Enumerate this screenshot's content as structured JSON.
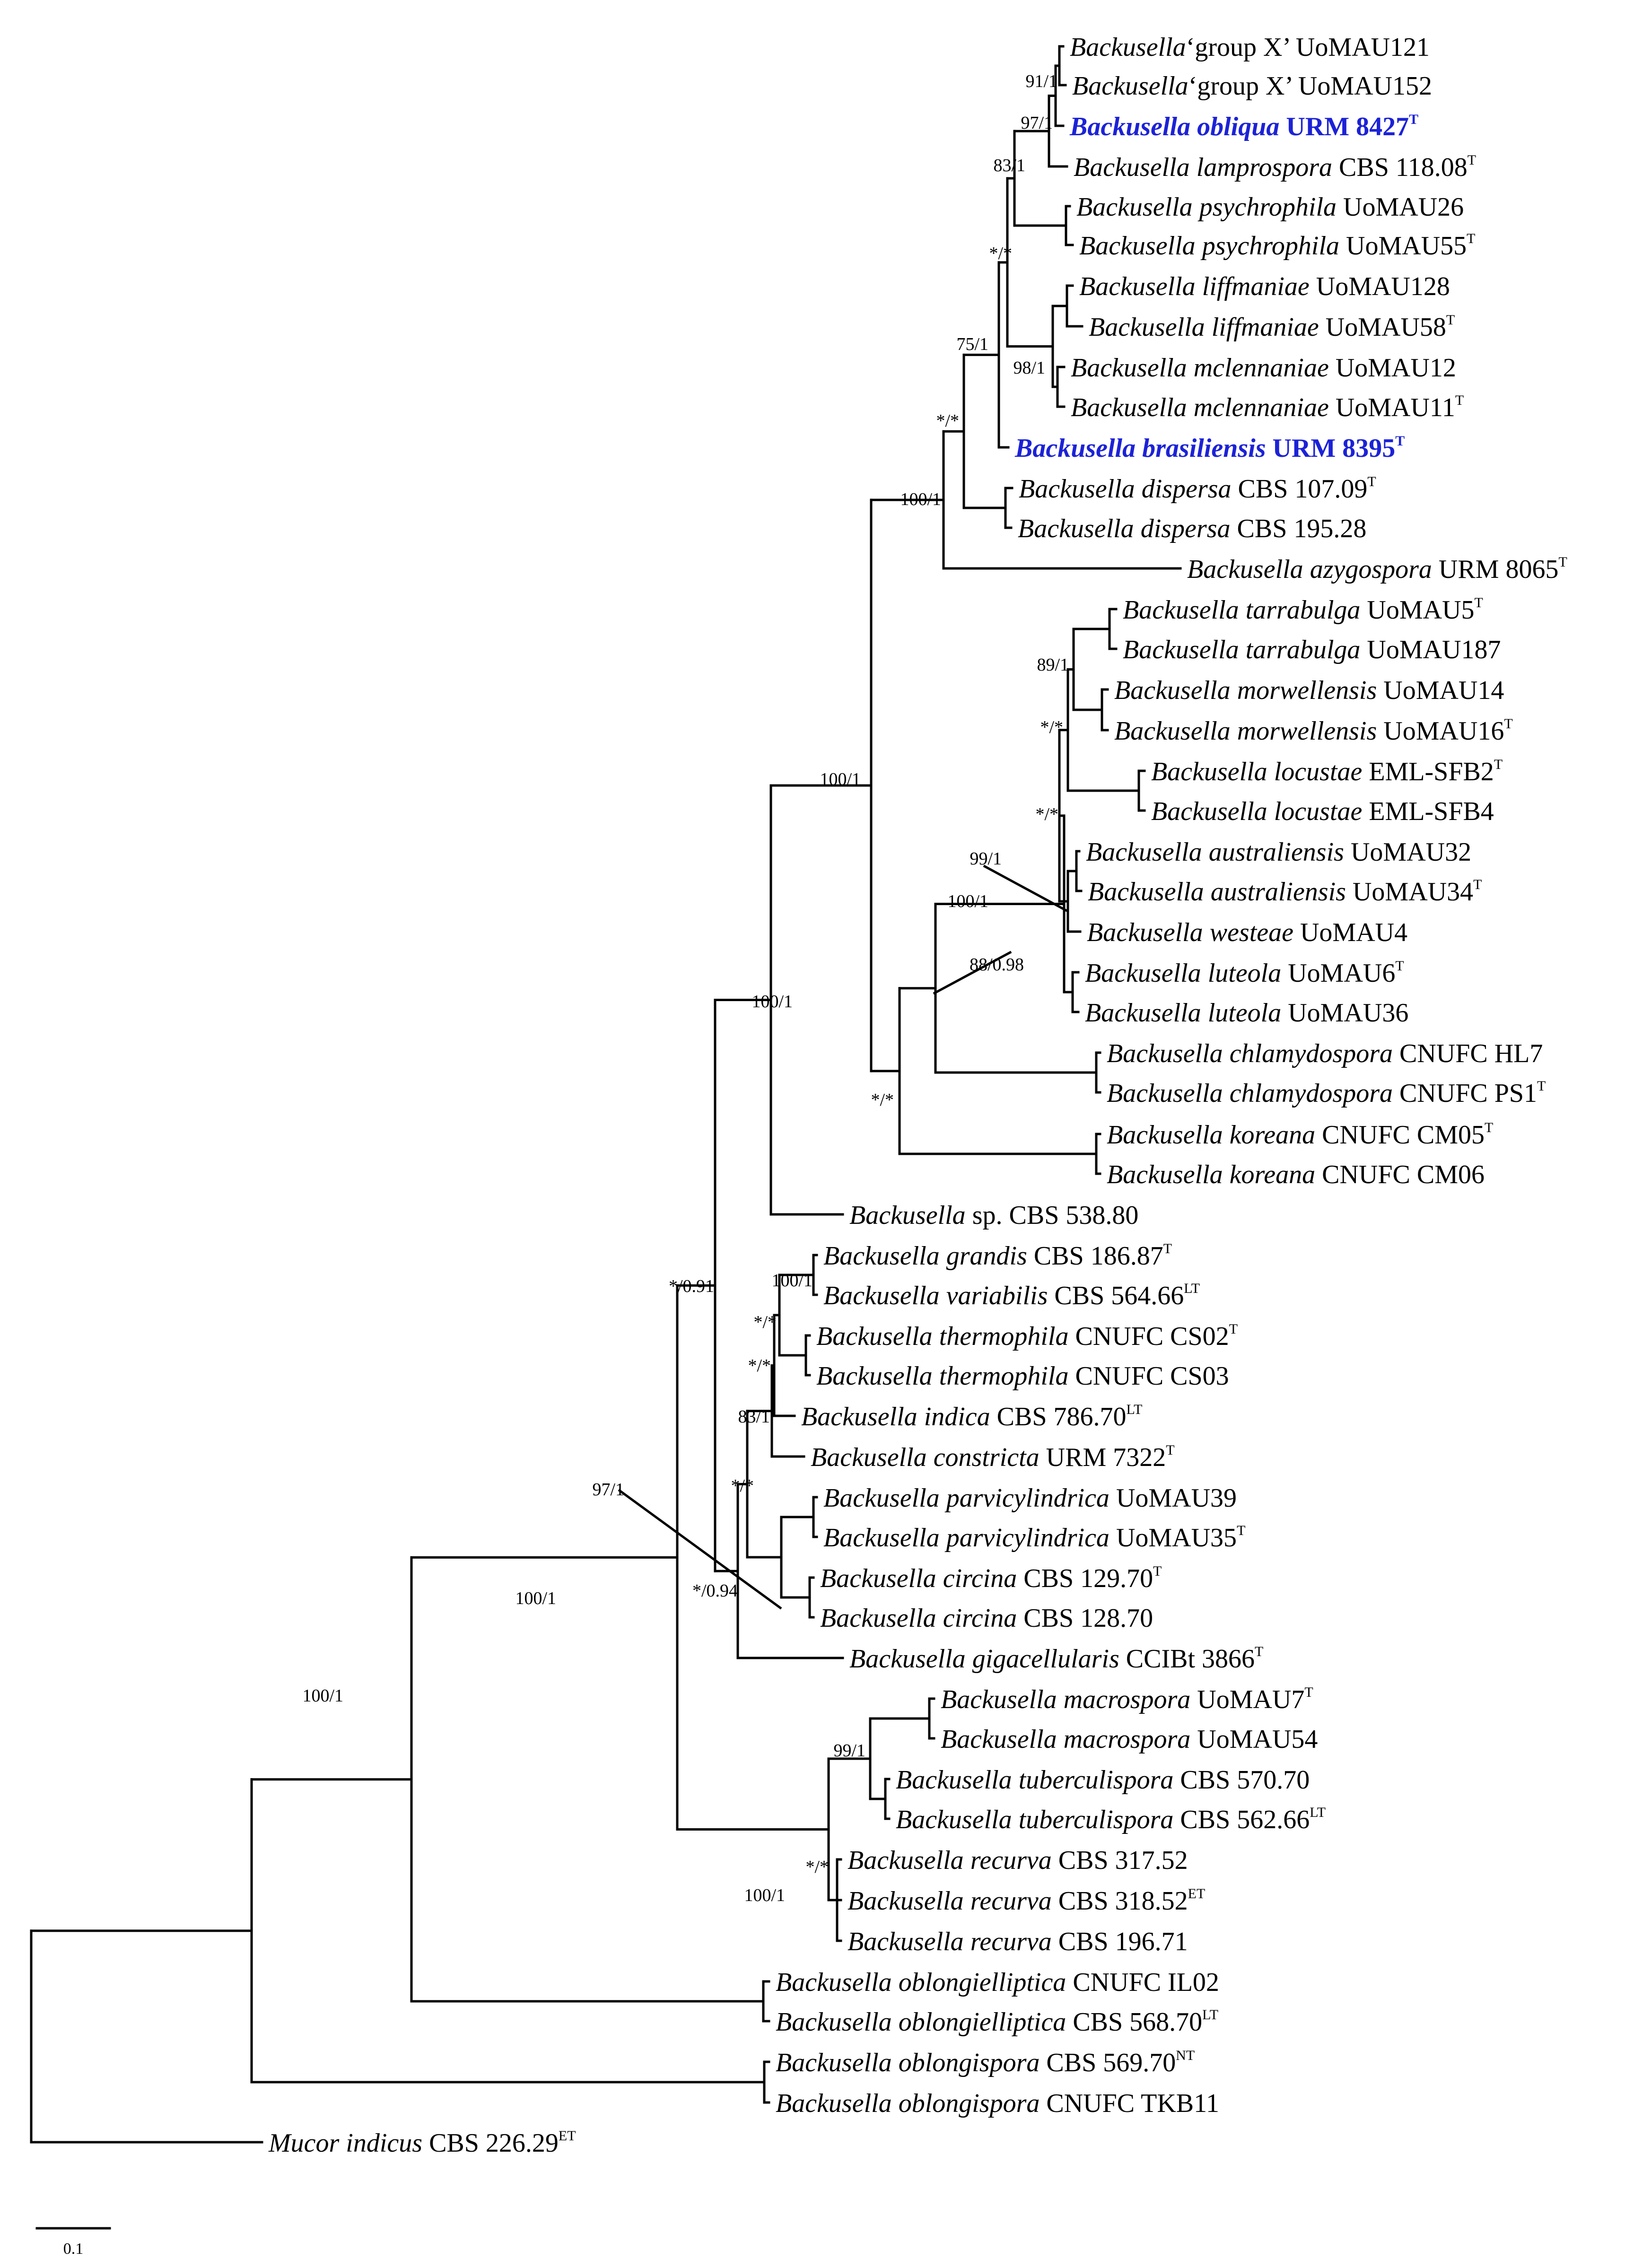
{
  "taxa": [
    {
      "id": "t1",
      "genus": "Backusella",
      "epithet": "",
      "qual": "‘group X’ ",
      "strain": "UoMAU121",
      "sup": ""
    },
    {
      "id": "t2",
      "genus": "Backusella",
      "epithet": "",
      "qual": "‘group X’ ",
      "strain": "UoMAU152",
      "sup": ""
    },
    {
      "id": "t3",
      "genus": "Backusella",
      "epithet": "obliqua",
      "strain": "URM 8427",
      "sup": "T",
      "highlight": true
    },
    {
      "id": "t4",
      "genus": "Backusella",
      "epithet": "lamprospora",
      "strain": "CBS 118.08",
      "sup": "T"
    },
    {
      "id": "t5",
      "genus": "Backusella",
      "epithet": "psychrophila",
      "strain": "UoMAU26",
      "sup": ""
    },
    {
      "id": "t6",
      "genus": "Backusella",
      "epithet": "psychrophila",
      "strain": "UoMAU55",
      "sup": "T"
    },
    {
      "id": "t7",
      "genus": "Backusella",
      "epithet": "liffmaniae",
      "strain": "UoMAU128",
      "sup": ""
    },
    {
      "id": "t8",
      "genus": "Backusella",
      "epithet": "liffmaniae",
      "strain": "UoMAU58",
      "sup": "T"
    },
    {
      "id": "t9",
      "genus": "Backusella",
      "epithet": "mclennaniae",
      "strain": "UoMAU12",
      "sup": ""
    },
    {
      "id": "t10",
      "genus": "Backusella",
      "epithet": "mclennaniae",
      "strain": "UoMAU11",
      "sup": "T"
    },
    {
      "id": "t11",
      "genus": "Backusella",
      "epithet": "brasiliensis",
      "strain": "URM 8395",
      "sup": "T",
      "highlight": true
    },
    {
      "id": "t12",
      "genus": "Backusella",
      "epithet": "dispersa",
      "strain": "CBS 107.09",
      "sup": "T"
    },
    {
      "id": "t13",
      "genus": "Backusella",
      "epithet": "dispersa",
      "strain": "CBS 195.28",
      "sup": ""
    },
    {
      "id": "t14",
      "genus": "Backusella",
      "epithet": "azygospora",
      "strain": "URM 8065",
      "sup": "T"
    },
    {
      "id": "t15",
      "genus": "Backusella",
      "epithet": "tarrabulga",
      "strain": "UoMAU5",
      "sup": "T"
    },
    {
      "id": "t16",
      "genus": "Backusella",
      "epithet": "tarrabulga",
      "strain": "UoMAU187",
      "sup": ""
    },
    {
      "id": "t17",
      "genus": "Backusella",
      "epithet": "morwellensis",
      "strain": "UoMAU14",
      "sup": ""
    },
    {
      "id": "t18",
      "genus": "Backusella",
      "epithet": "morwellensis",
      "strain": "UoMAU16",
      "sup": "T"
    },
    {
      "id": "t19",
      "genus": "Backusella",
      "epithet": "locustae",
      "strain": "EML-SFB2",
      "sup": "T"
    },
    {
      "id": "t20",
      "genus": "Backusella",
      "epithet": "locustae",
      "strain": "EML-SFB4",
      "sup": ""
    },
    {
      "id": "t21",
      "genus": "Backusella",
      "epithet": "australiensis",
      "strain": "UoMAU32",
      "sup": ""
    },
    {
      "id": "t22",
      "genus": "Backusella",
      "epithet": "australiensis",
      "strain": "UoMAU34",
      "sup": "T"
    },
    {
      "id": "t23",
      "genus": "Backusella",
      "epithet": "westeae",
      "strain": "UoMAU4",
      "sup": ""
    },
    {
      "id": "t24",
      "genus": "Backusella",
      "epithet": "luteola",
      "strain": "UoMAU6",
      "sup": "T"
    },
    {
      "id": "t25",
      "genus": "Backusella",
      "epithet": "luteola",
      "strain": "UoMAU36",
      "sup": ""
    },
    {
      "id": "t26",
      "genus": "Backusella",
      "epithet": "chlamydospora",
      "strain": "CNUFC HL7",
      "sup": ""
    },
    {
      "id": "t27",
      "genus": "Backusella",
      "epithet": "chlamydospora",
      "strain": "CNUFC PS1",
      "sup": "T"
    },
    {
      "id": "t28",
      "genus": "Backusella",
      "epithet": "koreana",
      "strain": "CNUFC CM05",
      "sup": "T"
    },
    {
      "id": "t29",
      "genus": "Backusella",
      "epithet": "koreana",
      "strain": "CNUFC CM06",
      "sup": ""
    },
    {
      "id": "t30",
      "genus": "Backusella",
      "epithet": "",
      "qual": " sp. ",
      "strain": "CBS 538.80",
      "sup": ""
    },
    {
      "id": "t31",
      "genus": "Backusella",
      "epithet": "grandis",
      "strain": "CBS 186.87",
      "sup": "T"
    },
    {
      "id": "t32",
      "genus": "Backusella",
      "epithet": "variabilis",
      "strain": "CBS 564.66",
      "sup": "LT"
    },
    {
      "id": "t33",
      "genus": "Backusella",
      "epithet": "thermophila",
      "strain": "CNUFC CS02",
      "sup": "T"
    },
    {
      "id": "t34",
      "genus": "Backusella",
      "epithet": "thermophila",
      "strain": "CNUFC CS03",
      "sup": ""
    },
    {
      "id": "t35",
      "genus": "Backusella",
      "epithet": "indica",
      "strain": "CBS 786.70",
      "sup": "LT"
    },
    {
      "id": "t36",
      "genus": "Backusella",
      "epithet": "constricta",
      "strain": "URM 7322",
      "sup": "T"
    },
    {
      "id": "t37",
      "genus": "Backusella",
      "epithet": "parvicylindrica",
      "strain": "UoMAU39",
      "sup": ""
    },
    {
      "id": "t38",
      "genus": "Backusella",
      "epithet": "parvicylindrica",
      "strain": "UoMAU35",
      "sup": "T"
    },
    {
      "id": "t39",
      "genus": "Backusella",
      "epithet": "circina",
      "strain": "CBS 129.70",
      "sup": "T"
    },
    {
      "id": "t40",
      "genus": "Backusella",
      "epithet": "circina",
      "strain": "CBS 128.70",
      "sup": ""
    },
    {
      "id": "t41",
      "genus": "Backusella",
      "epithet": "gigacellularis",
      "strain": "CCIBt 3866",
      "sup": "T"
    },
    {
      "id": "t42",
      "genus": "Backusella",
      "epithet": "macrospora",
      "strain": "UoMAU7",
      "sup": "T"
    },
    {
      "id": "t43",
      "genus": "Backusella",
      "epithet": "macrospora",
      "strain": "UoMAU54",
      "sup": ""
    },
    {
      "id": "t44",
      "genus": "Backusella",
      "epithet": "tuberculispora",
      "strain": "CBS 570.70",
      "sup": ""
    },
    {
      "id": "t45",
      "genus": "Backusella",
      "epithet": "tuberculispora",
      "strain": "CBS 562.66",
      "sup": "LT"
    },
    {
      "id": "t46",
      "genus": "Backusella",
      "epithet": "recurva",
      "strain": "CBS 317.52",
      "sup": ""
    },
    {
      "id": "t47",
      "genus": "Backusella",
      "epithet": "recurva",
      "strain": "CBS 318.52",
      "sup": "ET"
    },
    {
      "id": "t48",
      "genus": "Backusella",
      "epithet": "recurva",
      "strain": "CBS 196.71",
      "sup": ""
    },
    {
      "id": "t49",
      "genus": "Backusella",
      "epithet": "oblongielliptica",
      "strain": "CNUFC IL02",
      "sup": ""
    },
    {
      "id": "t50",
      "genus": "Backusella",
      "epithet": "oblongielliptica",
      "strain": "CBS 568.70",
      "sup": "LT"
    },
    {
      "id": "t51",
      "genus": "Backusella",
      "epithet": "oblongispora",
      "strain": "CBS 569.70",
      "sup": "NT"
    },
    {
      "id": "t52",
      "genus": "Backusella",
      "epithet": "oblongispora",
      "strain": "CNUFC TKB11",
      "sup": ""
    },
    {
      "id": "t53",
      "genus": "Mucor",
      "epithet": "indicus",
      "strain": "CBS 226.29",
      "sup": "ET"
    }
  ],
  "support_values": [
    {
      "id": "s1",
      "text": "91/1"
    },
    {
      "id": "s2",
      "text": "97/1"
    },
    {
      "id": "s3",
      "text": "83/1"
    },
    {
      "id": "s4",
      "text": "*/*"
    },
    {
      "id": "s5",
      "text": "98/1"
    },
    {
      "id": "s6",
      "text": "75/1"
    },
    {
      "id": "s7",
      "text": "*/*"
    },
    {
      "id": "s8",
      "text": "100/1"
    },
    {
      "id": "s9",
      "text": "89/1"
    },
    {
      "id": "s10",
      "text": "*/*"
    },
    {
      "id": "s11",
      "text": "*/*"
    },
    {
      "id": "s12",
      "text": "99/1"
    },
    {
      "id": "s13",
      "text": "100/1"
    },
    {
      "id": "s14",
      "text": "88/0.98"
    },
    {
      "id": "s15",
      "text": "100/1"
    },
    {
      "id": "s16",
      "text": "*/*"
    },
    {
      "id": "s17",
      "text": "100/1"
    },
    {
      "id": "s18",
      "text": "*/0.91"
    },
    {
      "id": "s19",
      "text": "100/1"
    },
    {
      "id": "s20",
      "text": "*/*"
    },
    {
      "id": "s21",
      "text": "*/*"
    },
    {
      "id": "s22",
      "text": "83/1"
    },
    {
      "id": "s23",
      "text": "*/*"
    },
    {
      "id": "s24",
      "text": "97/1"
    },
    {
      "id": "s25",
      "text": "*/0.94"
    },
    {
      "id": "s26",
      "text": "100/1"
    },
    {
      "id": "s27",
      "text": "99/1"
    },
    {
      "id": "s28",
      "text": "*/*"
    },
    {
      "id": "s29",
      "text": "100/1"
    },
    {
      "id": "s30",
      "text": "100/1"
    }
  ],
  "scale_bar": {
    "label": "0.1"
  },
  "colors": {
    "highlight": "#1c22d6",
    "branch": "#000000"
  }
}
